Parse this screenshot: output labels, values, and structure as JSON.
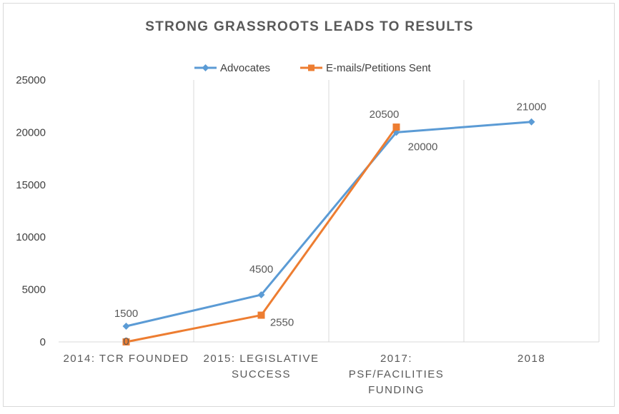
{
  "chart_data": {
    "type": "line",
    "title": "STRONG GRASSROOTS LEADS TO RESULTS",
    "categories": [
      [
        "2014: TCR FOUNDED"
      ],
      [
        "2015: LEGISLATIVE",
        "SUCCESS"
      ],
      [
        "2017:",
        "PSF/FACILITIES",
        "FUNDING"
      ],
      [
        "2018"
      ]
    ],
    "ylim": [
      0,
      25000
    ],
    "yticks": [
      "0",
      "5000",
      "10000",
      "15000",
      "20000",
      "25000"
    ],
    "grid": "vertical",
    "legend_position": "top",
    "series": [
      {
        "name": "Advocates",
        "color": "#5b9bd5",
        "marker": "diamond",
        "values": [
          1500,
          4500,
          20000,
          21000
        ],
        "labels": [
          "1500",
          "4500",
          "20000",
          "21000"
        ]
      },
      {
        "name": "E-mails/Petitions Sent",
        "color": "#ed7d31",
        "marker": "square",
        "values": [
          0,
          2550,
          20500,
          null
        ],
        "labels": [
          "0",
          "2550",
          "20500",
          ""
        ]
      }
    ]
  }
}
